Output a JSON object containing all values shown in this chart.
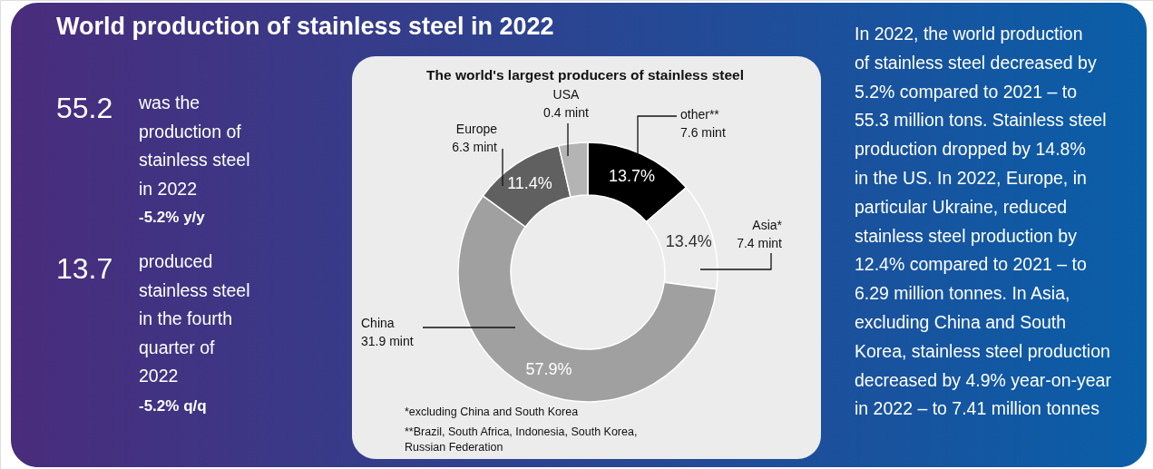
{
  "chart_data": {
    "type": "donut",
    "title": "The world's largest producers of stainless steel",
    "categories": [
      "other**",
      "Asia*",
      "China",
      "Europe",
      "USA"
    ],
    "values": [
      13.7,
      13.4,
      57.9,
      11.4,
      3.6
    ],
    "colors": [
      "#000000",
      "#ececec",
      "#a0a0a0",
      "#606060",
      "#b4b4b4"
    ],
    "value_labels": [
      "13.7%",
      "13.4%",
      "57.9%",
      "11.4%",
      null
    ],
    "annotations": [
      "World production of stainless steel in 2022",
      "55.2",
      "was the\nproduction of\nstainless steel\nin 2022",
      "-5.2% y/y",
      "13.7",
      "produced\nstainless steel\nin the fourth\nquarter of\n2022",
      "-5.2% q/q",
      "In 2022, the world production\nof stainless steel decreased by\n5.2% compared to 2021 – to\n55.3 million tons. Stainless steel\nproduction dropped by 14.8%\nin the US. In 2022, Europe, in\nparticular Ukraine, reduced\nstainless steel production by\n12.4% compared to 2021 – to\n6.29 million tonnes. In Asia,\nexcluding China and South\nKorea, stainless steel production\ndecreased by 4.9% year-on-year\nin 2022 – to 7.41 million tonnes",
      "7.6 mint",
      "7.4 mint",
      "31.9 mint",
      "6.3 mint",
      "0.4 mint",
      "*excluding China and South Korea",
      "**Brazil, South Africa, Indonesia, South Korea,\nRussian Federation"
    ]
  }
}
